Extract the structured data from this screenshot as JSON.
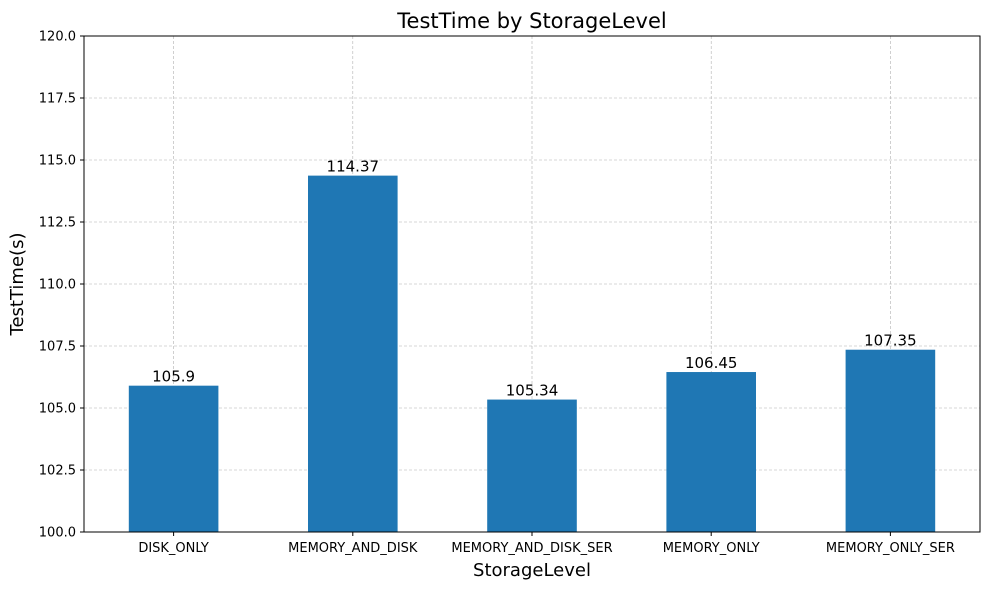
{
  "chart_data": {
    "type": "bar",
    "title": "TestTime by StorageLevel",
    "xlabel": "StorageLevel",
    "ylabel": "TestTime(s)",
    "categories": [
      "DISK_ONLY",
      "MEMORY_AND_DISK",
      "MEMORY_AND_DISK_SER",
      "MEMORY_ONLY",
      "MEMORY_ONLY_SER"
    ],
    "values": [
      105.9,
      114.37,
      105.34,
      106.45,
      107.35
    ],
    "value_labels": [
      "105.9",
      "114.37",
      "105.34",
      "106.45",
      "107.35"
    ],
    "ylim": [
      100.0,
      120.0
    ],
    "yticks": [
      "100.0",
      "102.5",
      "105.0",
      "107.5",
      "110.0",
      "112.5",
      "115.0",
      "117.5",
      "120.0"
    ],
    "grid": true,
    "bar_color": "#1f77b4",
    "grid_color": "#b0b0b0"
  }
}
